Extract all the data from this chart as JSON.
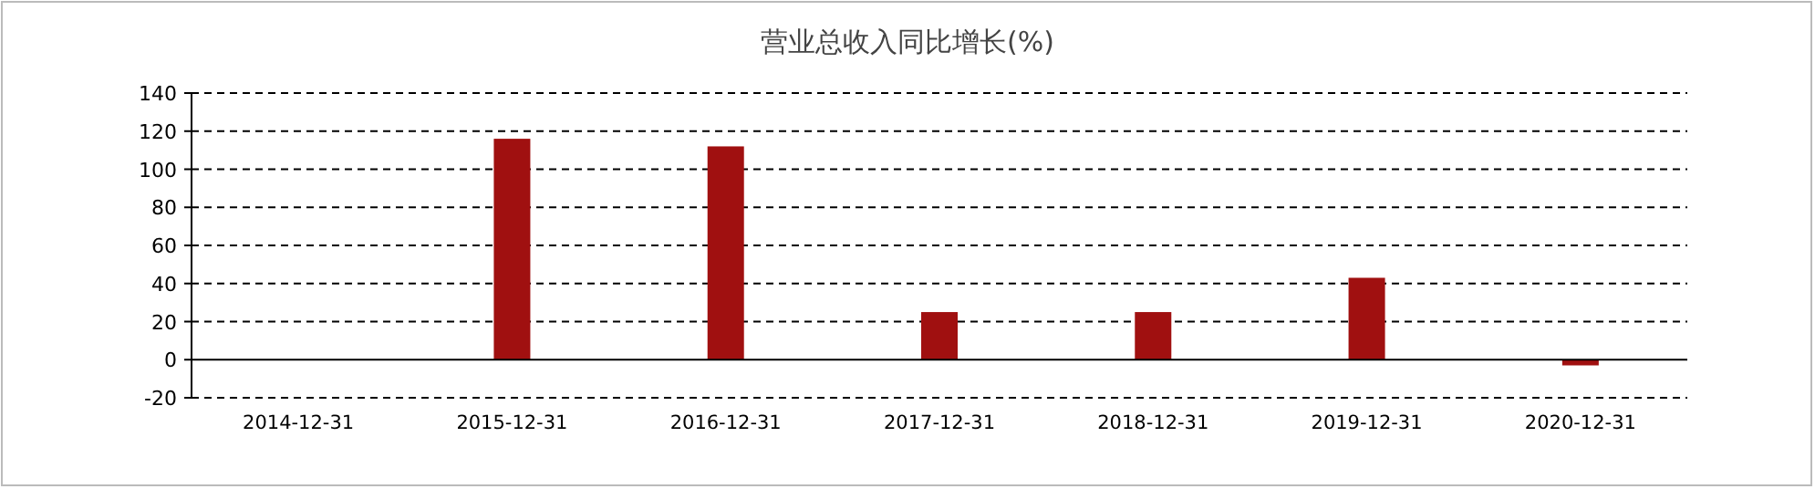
{
  "chart_data": {
    "type": "bar",
    "title": "营业总收入同比增长(%)",
    "categories": [
      "2014-12-31",
      "2015-12-31",
      "2016-12-31",
      "2017-12-31",
      "2018-12-31",
      "2019-12-31",
      "2020-12-31"
    ],
    "values": [
      null,
      116,
      112,
      25,
      25,
      43,
      -3
    ],
    "color": "#a01010",
    "ylim": [
      -20,
      140
    ],
    "yticks": [
      -20,
      0,
      20,
      40,
      60,
      80,
      100,
      120,
      140
    ],
    "grid": "y"
  }
}
